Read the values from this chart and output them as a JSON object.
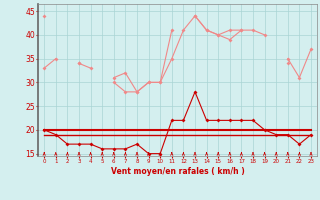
{
  "x": [
    0,
    1,
    2,
    3,
    4,
    5,
    6,
    7,
    8,
    9,
    10,
    11,
    12,
    13,
    14,
    15,
    16,
    17,
    18,
    19,
    20,
    21,
    22,
    23
  ],
  "series_rafales_high": [
    44,
    null,
    null,
    34,
    null,
    null,
    31,
    32,
    28,
    30,
    30,
    41,
    null,
    44,
    41,
    40,
    39,
    41,
    null,
    null,
    null,
    34,
    null,
    null
  ],
  "series_rafales_low": [
    33,
    35,
    null,
    34,
    33,
    null,
    30,
    28,
    28,
    30,
    30,
    35,
    41,
    44,
    41,
    40,
    41,
    41,
    41,
    40,
    null,
    35,
    31,
    37
  ],
  "series_moyen": [
    20,
    19,
    17,
    17,
    17,
    16,
    16,
    16,
    17,
    15,
    15,
    22,
    22,
    28,
    22,
    22,
    22,
    22,
    22,
    20,
    19,
    19,
    17,
    19
  ],
  "series_flat1": [
    20,
    20,
    20,
    20,
    20,
    20,
    20,
    20,
    20,
    20,
    20,
    20,
    20,
    20,
    20,
    20,
    20,
    20,
    20,
    20,
    20,
    20,
    20,
    20
  ],
  "series_flat2": [
    19,
    19,
    19,
    19,
    19,
    19,
    19,
    19,
    19,
    19,
    19,
    19,
    19,
    19,
    19,
    19,
    19,
    19,
    19,
    19,
    19,
    19,
    19,
    19
  ],
  "bg_color": "#d4efef",
  "grid_color": "#aad4d4",
  "color_light": "#f08888",
  "color_dark": "#cc0000",
  "xlabel": "Vent moyen/en rafales ( km/h )",
  "yticks": [
    15,
    20,
    25,
    30,
    35,
    40,
    45
  ],
  "xticks": [
    0,
    1,
    2,
    3,
    4,
    5,
    6,
    7,
    8,
    9,
    10,
    11,
    12,
    13,
    14,
    15,
    16,
    17,
    18,
    19,
    20,
    21,
    22,
    23
  ],
  "ylim": [
    14.5,
    46.5
  ],
  "xlim": [
    -0.5,
    23.5
  ]
}
